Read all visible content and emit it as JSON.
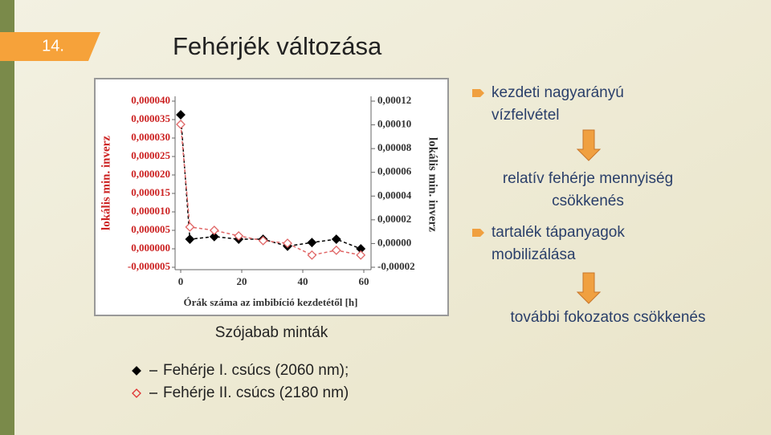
{
  "slide": {
    "number": "14.",
    "title": "Fehérjék változása",
    "caption": "Szójabab minták",
    "flow": [
      [
        "kezdeti nagyarányú",
        "vízfelvétel"
      ],
      [
        "relatív fehérje mennyiség",
        "csökkenés"
      ],
      [
        "tartalék tápanyagok",
        "mobilizálása"
      ],
      [
        "további fokozatos csökkenés"
      ]
    ]
  },
  "chart_data": {
    "type": "line",
    "xlabel": "Órák száma az imbibíció kezdetétől [h]",
    "ylabel": "lokális min. inverz",
    "y2label": "lokális min. inverz",
    "x": [
      0,
      3,
      11,
      19,
      27,
      35,
      43,
      51,
      59
    ],
    "xlim": [
      0,
      60
    ],
    "xticks": [
      0,
      20,
      40,
      60
    ],
    "ylim": [
      -5e-06,
      4e-05
    ],
    "yticks": [
      {
        "value": -5e-06,
        "label": "-0,000005"
      },
      {
        "value": 0,
        "label": "0,000000"
      },
      {
        "value": 5e-06,
        "label": "0,000005"
      },
      {
        "value": 1e-05,
        "label": "0,000010"
      },
      {
        "value": 1.5e-05,
        "label": "0,000015"
      },
      {
        "value": 2e-05,
        "label": "0,000020"
      },
      {
        "value": 2.5e-05,
        "label": "0,000025"
      },
      {
        "value": 3e-05,
        "label": "0,000030"
      },
      {
        "value": 3.5e-05,
        "label": "0,000035"
      },
      {
        "value": 4e-05,
        "label": "0,000040"
      }
    ],
    "y2lim": [
      -2e-05,
      0.00012
    ],
    "y2ticks": [
      {
        "value": -2e-05,
        "label": "-0,00002"
      },
      {
        "value": 0,
        "label": "0,00000"
      },
      {
        "value": 2e-05,
        "label": "0,00002"
      },
      {
        "value": 4e-05,
        "label": "0,00004"
      },
      {
        "value": 6e-05,
        "label": "0,00006"
      },
      {
        "value": 8e-05,
        "label": "0,00008"
      },
      {
        "value": 0.0001,
        "label": "0,00010"
      },
      {
        "value": 0.00012,
        "label": "0,00012"
      }
    ],
    "series": [
      {
        "name": "Fehérje I. csúcs (2060 nm);",
        "color": "#000000",
        "marker": "filled",
        "values": [
          3.63e-05,
          2.6e-06,
          3.3e-06,
          2.6e-06,
          2.6e-06,
          7e-07,
          1.7e-06,
          2.6e-06,
          0.0
        ]
      },
      {
        "name": "Fehérje II. csúcs (2180 nm)",
        "color": "#e06666",
        "marker": "open",
        "values": [
          3.37e-05,
          5.9e-06,
          5e-06,
          3.5e-06,
          2.2e-06,
          1.5e-06,
          -1.7e-06,
          -4e-07,
          -1.7e-06
        ]
      }
    ]
  }
}
